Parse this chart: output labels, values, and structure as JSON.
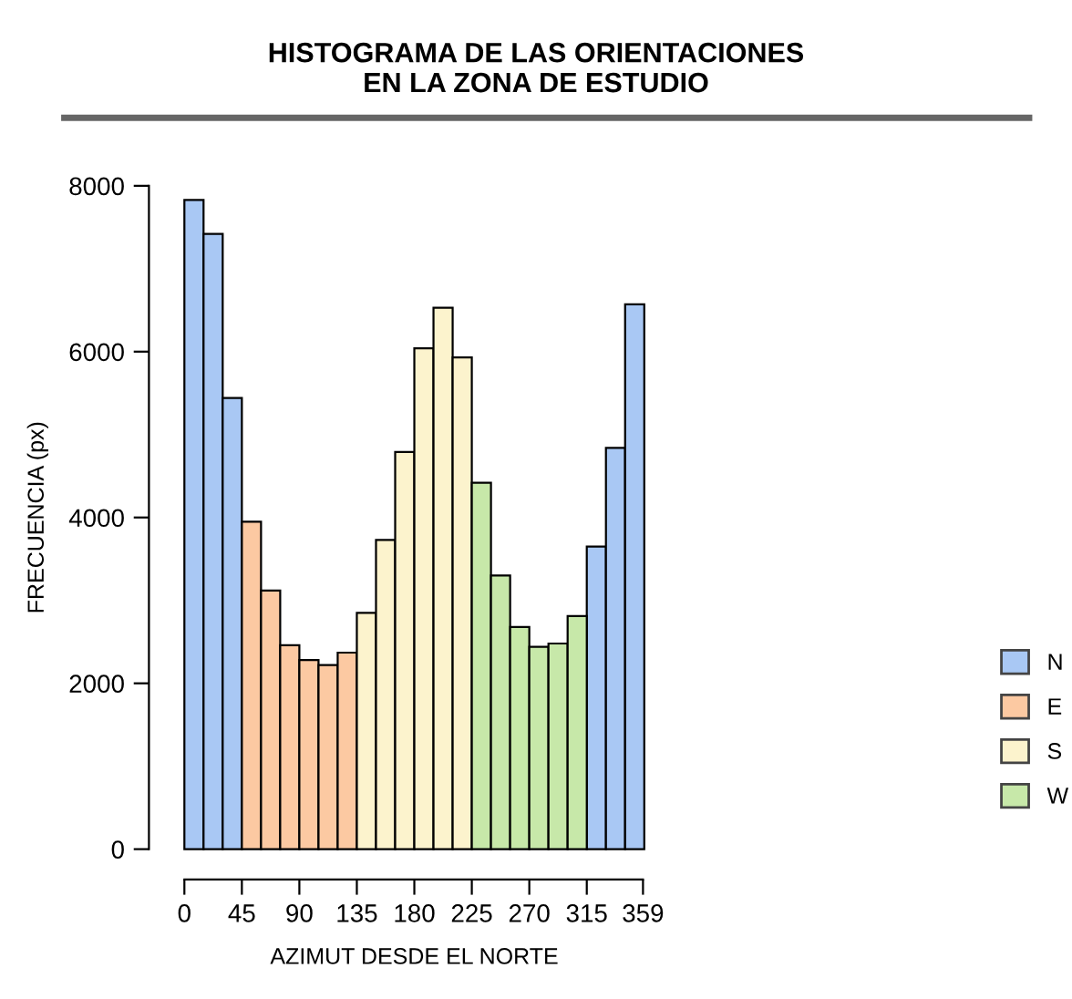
{
  "chart_data": {
    "type": "histogram",
    "title": "HISTOGRAMA DE LAS ORIENTACIONES\nEN LA ZONA DE ESTUDIO",
    "xlabel": "AZIMUT DESDE EL NORTE",
    "ylabel": "FRECUENCIA (px)",
    "bins": [
      0,
      15,
      30,
      45,
      60,
      75,
      90,
      105,
      120,
      135,
      150,
      165,
      180,
      195,
      210,
      225,
      240,
      255,
      270,
      285,
      300,
      315,
      330,
      345,
      360
    ],
    "series": [
      {
        "name": "N",
        "color": "#a9c8f4",
        "values": [
          7830,
          7420,
          5440,
          null,
          null,
          null,
          null,
          null,
          null,
          null,
          null,
          null,
          null,
          null,
          null,
          null,
          null,
          null,
          null,
          null,
          null,
          3650,
          4840,
          6570
        ]
      },
      {
        "name": "E",
        "color": "#fcc9a2",
        "values": [
          null,
          null,
          null,
          3950,
          3120,
          2460,
          2280,
          2220,
          2370,
          null,
          null,
          null,
          null,
          null,
          null,
          null,
          null,
          null,
          null,
          null,
          null,
          null,
          null,
          null
        ]
      },
      {
        "name": "S",
        "color": "#fcf3cd",
        "values": [
          null,
          null,
          null,
          null,
          null,
          null,
          null,
          null,
          null,
          2850,
          3730,
          4790,
          6040,
          6530,
          5930,
          null,
          null,
          null,
          null,
          null,
          null,
          null,
          null,
          null
        ]
      },
      {
        "name": "W",
        "color": "#c7e8a9",
        "values": [
          null,
          null,
          null,
          null,
          null,
          null,
          null,
          null,
          null,
          null,
          null,
          null,
          null,
          null,
          null,
          4420,
          3300,
          2680,
          2440,
          2480,
          2810,
          null,
          null,
          null
        ]
      }
    ],
    "xlim": [
      0,
      360
    ],
    "ylim": [
      0,
      8000
    ],
    "xticks": [
      0,
      45,
      90,
      135,
      180,
      225,
      270,
      315,
      359
    ],
    "yticks": [
      0,
      2000,
      4000,
      6000,
      8000
    ],
    "grid": false,
    "legend": "right"
  }
}
